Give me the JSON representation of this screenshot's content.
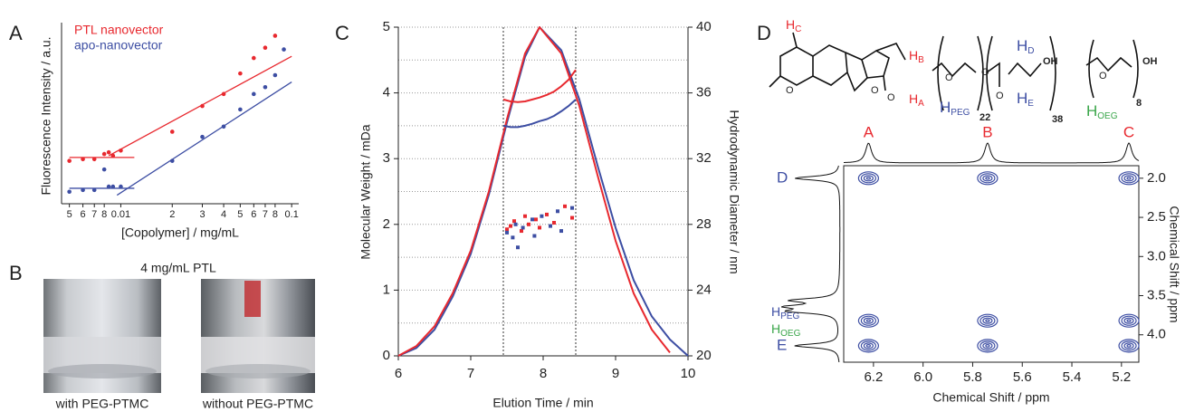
{
  "panel_labels": [
    "A",
    "B",
    "C",
    "D"
  ],
  "photo_panel": {
    "title": "4 mg/mL PTL",
    "captions": [
      "with PEG-PTMC",
      "without PEG-PTMC"
    ]
  },
  "structures": {
    "oxygen": "O",
    "hydroxyl": "OH",
    "h_c": {
      "main": "H",
      "sub": "C"
    },
    "h_b": {
      "main": "H",
      "sub": "B"
    },
    "h_a": {
      "main": "H",
      "sub": "A"
    },
    "h_peg": {
      "main": "H",
      "sub": "PEG"
    },
    "h_d": {
      "main": "H",
      "sub": "D"
    },
    "h_e": {
      "main": "H",
      "sub": "E"
    },
    "h_oeg": {
      "main": "H",
      "sub": "OEG"
    },
    "peg_repeat": "22",
    "ptmc_repeat": "38",
    "oeg_repeat": "8"
  },
  "chart_data": [
    {
      "type": "scatter",
      "xlabel": "[Copolymer] / mg/mL",
      "ylabel": "Fluorescence Intensity / a.u.",
      "xscale": "log",
      "xlim": [
        0.0045,
        0.11
      ],
      "ylim": [
        -3,
        100
      ],
      "legend": "upper left",
      "xticks": [
        {
          "value": 0.005,
          "label": "5"
        },
        {
          "value": 0.006,
          "label": "6"
        },
        {
          "value": 0.007,
          "label": "7"
        },
        {
          "value": 0.008,
          "label": "8"
        },
        {
          "value": 0.01,
          "label": "0.01"
        },
        {
          "value": 0.02,
          "label": "2"
        },
        {
          "value": 0.03,
          "label": "3"
        },
        {
          "value": 0.04,
          "label": "4"
        },
        {
          "value": 0.05,
          "label": "5"
        },
        {
          "value": 0.06,
          "label": "6"
        },
        {
          "value": 0.07,
          "label": "7"
        },
        {
          "value": 0.08,
          "label": "8"
        },
        {
          "value": 0.1,
          "label": "0.1"
        }
      ],
      "series": [
        {
          "name": "PTL nanovector",
          "color": "#e8292f",
          "x": [
            0.005,
            0.006,
            0.007,
            0.008,
            0.0085,
            0.009,
            0.01,
            0.02,
            0.03,
            0.04,
            0.05,
            0.06,
            0.07,
            0.08
          ],
          "values": [
            22,
            23,
            23,
            26,
            27,
            25,
            28,
            39,
            54,
            61,
            73,
            82,
            88,
            95
          ],
          "fits": [
            {
              "x": [
                0.005,
                0.012
              ],
              "values": [
                24,
                24
              ]
            },
            {
              "x": [
                0.0085,
                0.1
              ],
              "values": [
                25,
                83
              ]
            }
          ]
        },
        {
          "name": "apo-nanovector",
          "color": "#3d4ea3",
          "x": [
            0.005,
            0.006,
            0.007,
            0.008,
            0.0085,
            0.009,
            0.01,
            0.02,
            0.03,
            0.04,
            0.05,
            0.06,
            0.07,
            0.08,
            0.09
          ],
          "values": [
            4,
            5,
            5,
            17,
            7,
            7,
            7,
            22,
            36,
            42,
            52,
            61,
            65,
            72,
            87
          ],
          "fits": [
            {
              "x": [
                0.005,
                0.012
              ],
              "values": [
                6,
                6
              ]
            },
            {
              "x": [
                0.0095,
                0.1
              ],
              "values": [
                2,
                68
              ]
            }
          ]
        }
      ]
    },
    {
      "type": "line",
      "xlabel": "Elution Time / min",
      "ylabel": "Molecular Weight / mDa",
      "y2label": "Hydrodynamic Diameter / nm",
      "xlim": [
        6,
        10
      ],
      "ylim": [
        0,
        5
      ],
      "y2lim": [
        20,
        40
      ],
      "xticks": [
        6,
        7,
        8,
        9,
        10
      ],
      "yticks": [
        0,
        1,
        2,
        3,
        4,
        5
      ],
      "y2ticks": [
        20,
        24,
        28,
        32,
        36,
        40
      ],
      "grid": true,
      "ygrid": [
        0.5,
        1.5,
        2.5,
        3.5,
        4.5
      ],
      "vlines": [
        7.45,
        8.45
      ],
      "series": [
        {
          "style": "line",
          "color": "#3d4ea3",
          "x": [
            6,
            6.25,
            6.5,
            6.75,
            7,
            7.25,
            7.5,
            7.75,
            7.95,
            8.25,
            8.5,
            8.75,
            9,
            9.25,
            9.5,
            9.75,
            10
          ],
          "values": [
            0,
            0.12,
            0.4,
            0.9,
            1.55,
            2.45,
            3.55,
            4.55,
            5,
            4.65,
            3.9,
            2.9,
            1.95,
            1.15,
            0.6,
            0.25,
            0
          ]
        },
        {
          "style": "line",
          "color": "#e8292f",
          "x": [
            6,
            6.25,
            6.5,
            6.75,
            7,
            7.25,
            7.5,
            7.75,
            7.95,
            8.25,
            8.5,
            8.75,
            9,
            9.25,
            9.5,
            9.75
          ],
          "values": [
            0,
            0.15,
            0.45,
            0.95,
            1.6,
            2.5,
            3.6,
            4.6,
            5,
            4.6,
            3.8,
            2.75,
            1.75,
            0.95,
            0.4,
            0.05
          ]
        },
        {
          "style": "line",
          "color": "#e8292f",
          "x": [
            7.45,
            7.55,
            7.65,
            7.75,
            7.85,
            7.95,
            8.05,
            8.15,
            8.25,
            8.35,
            8.45
          ],
          "values": [
            3.9,
            3.87,
            3.86,
            3.87,
            3.9,
            3.93,
            3.97,
            4.02,
            4.1,
            4.2,
            4.35
          ]
        },
        {
          "style": "line",
          "color": "#3d4ea3",
          "x": [
            7.45,
            7.55,
            7.65,
            7.75,
            7.85,
            7.95,
            8.05,
            8.15,
            8.25,
            8.35,
            8.45
          ],
          "values": [
            3.5,
            3.48,
            3.48,
            3.5,
            3.53,
            3.57,
            3.6,
            3.65,
            3.72,
            3.8,
            3.9
          ]
        },
        {
          "style": "points",
          "axis": "y2",
          "color": "#e8292f",
          "x": [
            7.5,
            7.55,
            7.6,
            7.7,
            7.75,
            7.8,
            7.9,
            7.95,
            8.05,
            8.15,
            8.3,
            8.4
          ],
          "values": [
            27.7,
            27.9,
            28.2,
            27.6,
            28.5,
            28,
            28.3,
            27.8,
            28.6,
            28.1,
            29.1,
            28.4
          ]
        },
        {
          "style": "points",
          "axis": "y2",
          "color": "#3d4ea3",
          "x": [
            7.5,
            7.58,
            7.62,
            7.65,
            7.72,
            7.85,
            7.88,
            7.98,
            8.1,
            8.2,
            8.25,
            8.4
          ],
          "values": [
            27.5,
            27.2,
            28,
            26.6,
            27.8,
            28.3,
            27.3,
            28.5,
            27.9,
            28.8,
            27.6,
            29
          ]
        }
      ]
    },
    {
      "type": "nmr2d",
      "xlabel": "Chemical Shift / ppm",
      "ylabel": "Chemical Shift / ppm",
      "color": "#3d4ea3",
      "xlim": [
        6.32,
        5.13
      ],
      "ylim": [
        1.84,
        4.35
      ],
      "xticks": [
        6.2,
        {
          "value": 6,
          "label": "6.0"
        },
        5.8,
        5.6,
        5.4,
        5.2
      ],
      "yticks": [
        {
          "value": 2,
          "label": "2.0"
        },
        2.5,
        {
          "value": 3,
          "label": "3.0"
        },
        3.5,
        {
          "value": 4,
          "label": "4.0"
        }
      ],
      "peaks": {
        "x": [
          6.22,
          5.74,
          5.17,
          6.22,
          5.74,
          5.17,
          6.22,
          5.74,
          5.17
        ],
        "values": [
          2,
          2,
          2,
          3.82,
          3.82,
          3.82,
          4.14,
          4.14,
          4.14
        ]
      },
      "top_projection": {
        "x": [
          6.22,
          5.74,
          5.17
        ],
        "labels": [
          "A",
          "B",
          "C"
        ],
        "label_color": "#e8292f"
      },
      "left_projection": {
        "values": [
          2,
          3.56,
          3.64,
          3.7,
          4.14
        ],
        "labels": [
          "D",
          "E"
        ]
      }
    }
  ]
}
